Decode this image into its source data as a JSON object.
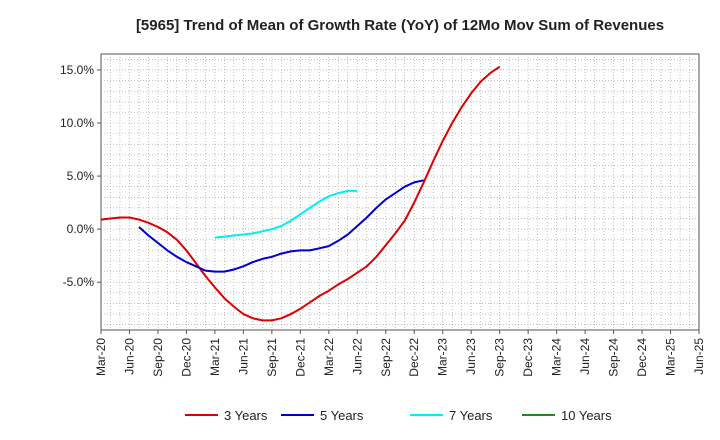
{
  "chart_data": {
    "type": "line",
    "title": "[5965]  Trend of Mean of Growth Rate (YoY) of 12Mo Mov Sum of Revenues",
    "xlabel": "",
    "ylabel": "",
    "ylim": [
      -9.5,
      16.5
    ],
    "y_ticks": [
      15,
      10,
      5,
      0,
      -5
    ],
    "y_tick_labels": [
      "15.0%",
      "10.0%",
      "5.0%",
      "0.0%",
      "-5.0%"
    ],
    "x_ticks": [
      "Mar-20",
      "Jun-20",
      "Sep-20",
      "Dec-20",
      "Mar-21",
      "Jun-21",
      "Sep-21",
      "Dec-21",
      "Mar-22",
      "Jun-22",
      "Sep-22",
      "Dec-22",
      "Mar-23",
      "Jun-23",
      "Sep-23",
      "Dec-23",
      "Mar-24",
      "Jun-24",
      "Sep-24",
      "Dec-24",
      "Mar-25",
      "Jun-25"
    ],
    "grid": true,
    "legend_position": "bottom",
    "series": [
      {
        "name": "3 Years",
        "color": "#dd0000",
        "start_index": 0,
        "values": [
          0.9,
          1.0,
          1.1,
          1.1,
          0.9,
          0.6,
          0.2,
          -0.3,
          -1.0,
          -2.0,
          -3.2,
          -4.4,
          -5.5,
          -6.5,
          -7.3,
          -8.0,
          -8.4,
          -8.6,
          -8.6,
          -8.4,
          -8.0,
          -7.5,
          -6.9,
          -6.3,
          -5.8,
          -5.2,
          -4.7,
          -4.1,
          -3.5,
          -2.6,
          -1.5,
          -0.4,
          0.8,
          2.5,
          4.4,
          6.4,
          8.3,
          10.0,
          11.5,
          12.8,
          13.9,
          14.7,
          15.3
        ]
      },
      {
        "name": "5 Years",
        "color": "#0000cc",
        "start_index": 4,
        "values": [
          0.2,
          -0.6,
          -1.3,
          -2.0,
          -2.6,
          -3.1,
          -3.5,
          -3.9,
          -4.0,
          -4.0,
          -3.8,
          -3.5,
          -3.1,
          -2.8,
          -2.6,
          -2.3,
          -2.1,
          -2.0,
          -2.0,
          -1.8,
          -1.6,
          -1.1,
          -0.5,
          0.3,
          1.1,
          2.0,
          2.8,
          3.4,
          4.0,
          4.4,
          4.6
        ]
      },
      {
        "name": "7 Years",
        "color": "#00eeee",
        "start_index": 12,
        "values": [
          -0.8,
          -0.7,
          -0.6,
          -0.5,
          -0.4,
          -0.2,
          0.0,
          0.3,
          0.8,
          1.4,
          2.0,
          2.6,
          3.1,
          3.4,
          3.6,
          3.6
        ]
      },
      {
        "name": "10 Years",
        "color": "#228822",
        "start_index": 0,
        "values": []
      }
    ]
  }
}
